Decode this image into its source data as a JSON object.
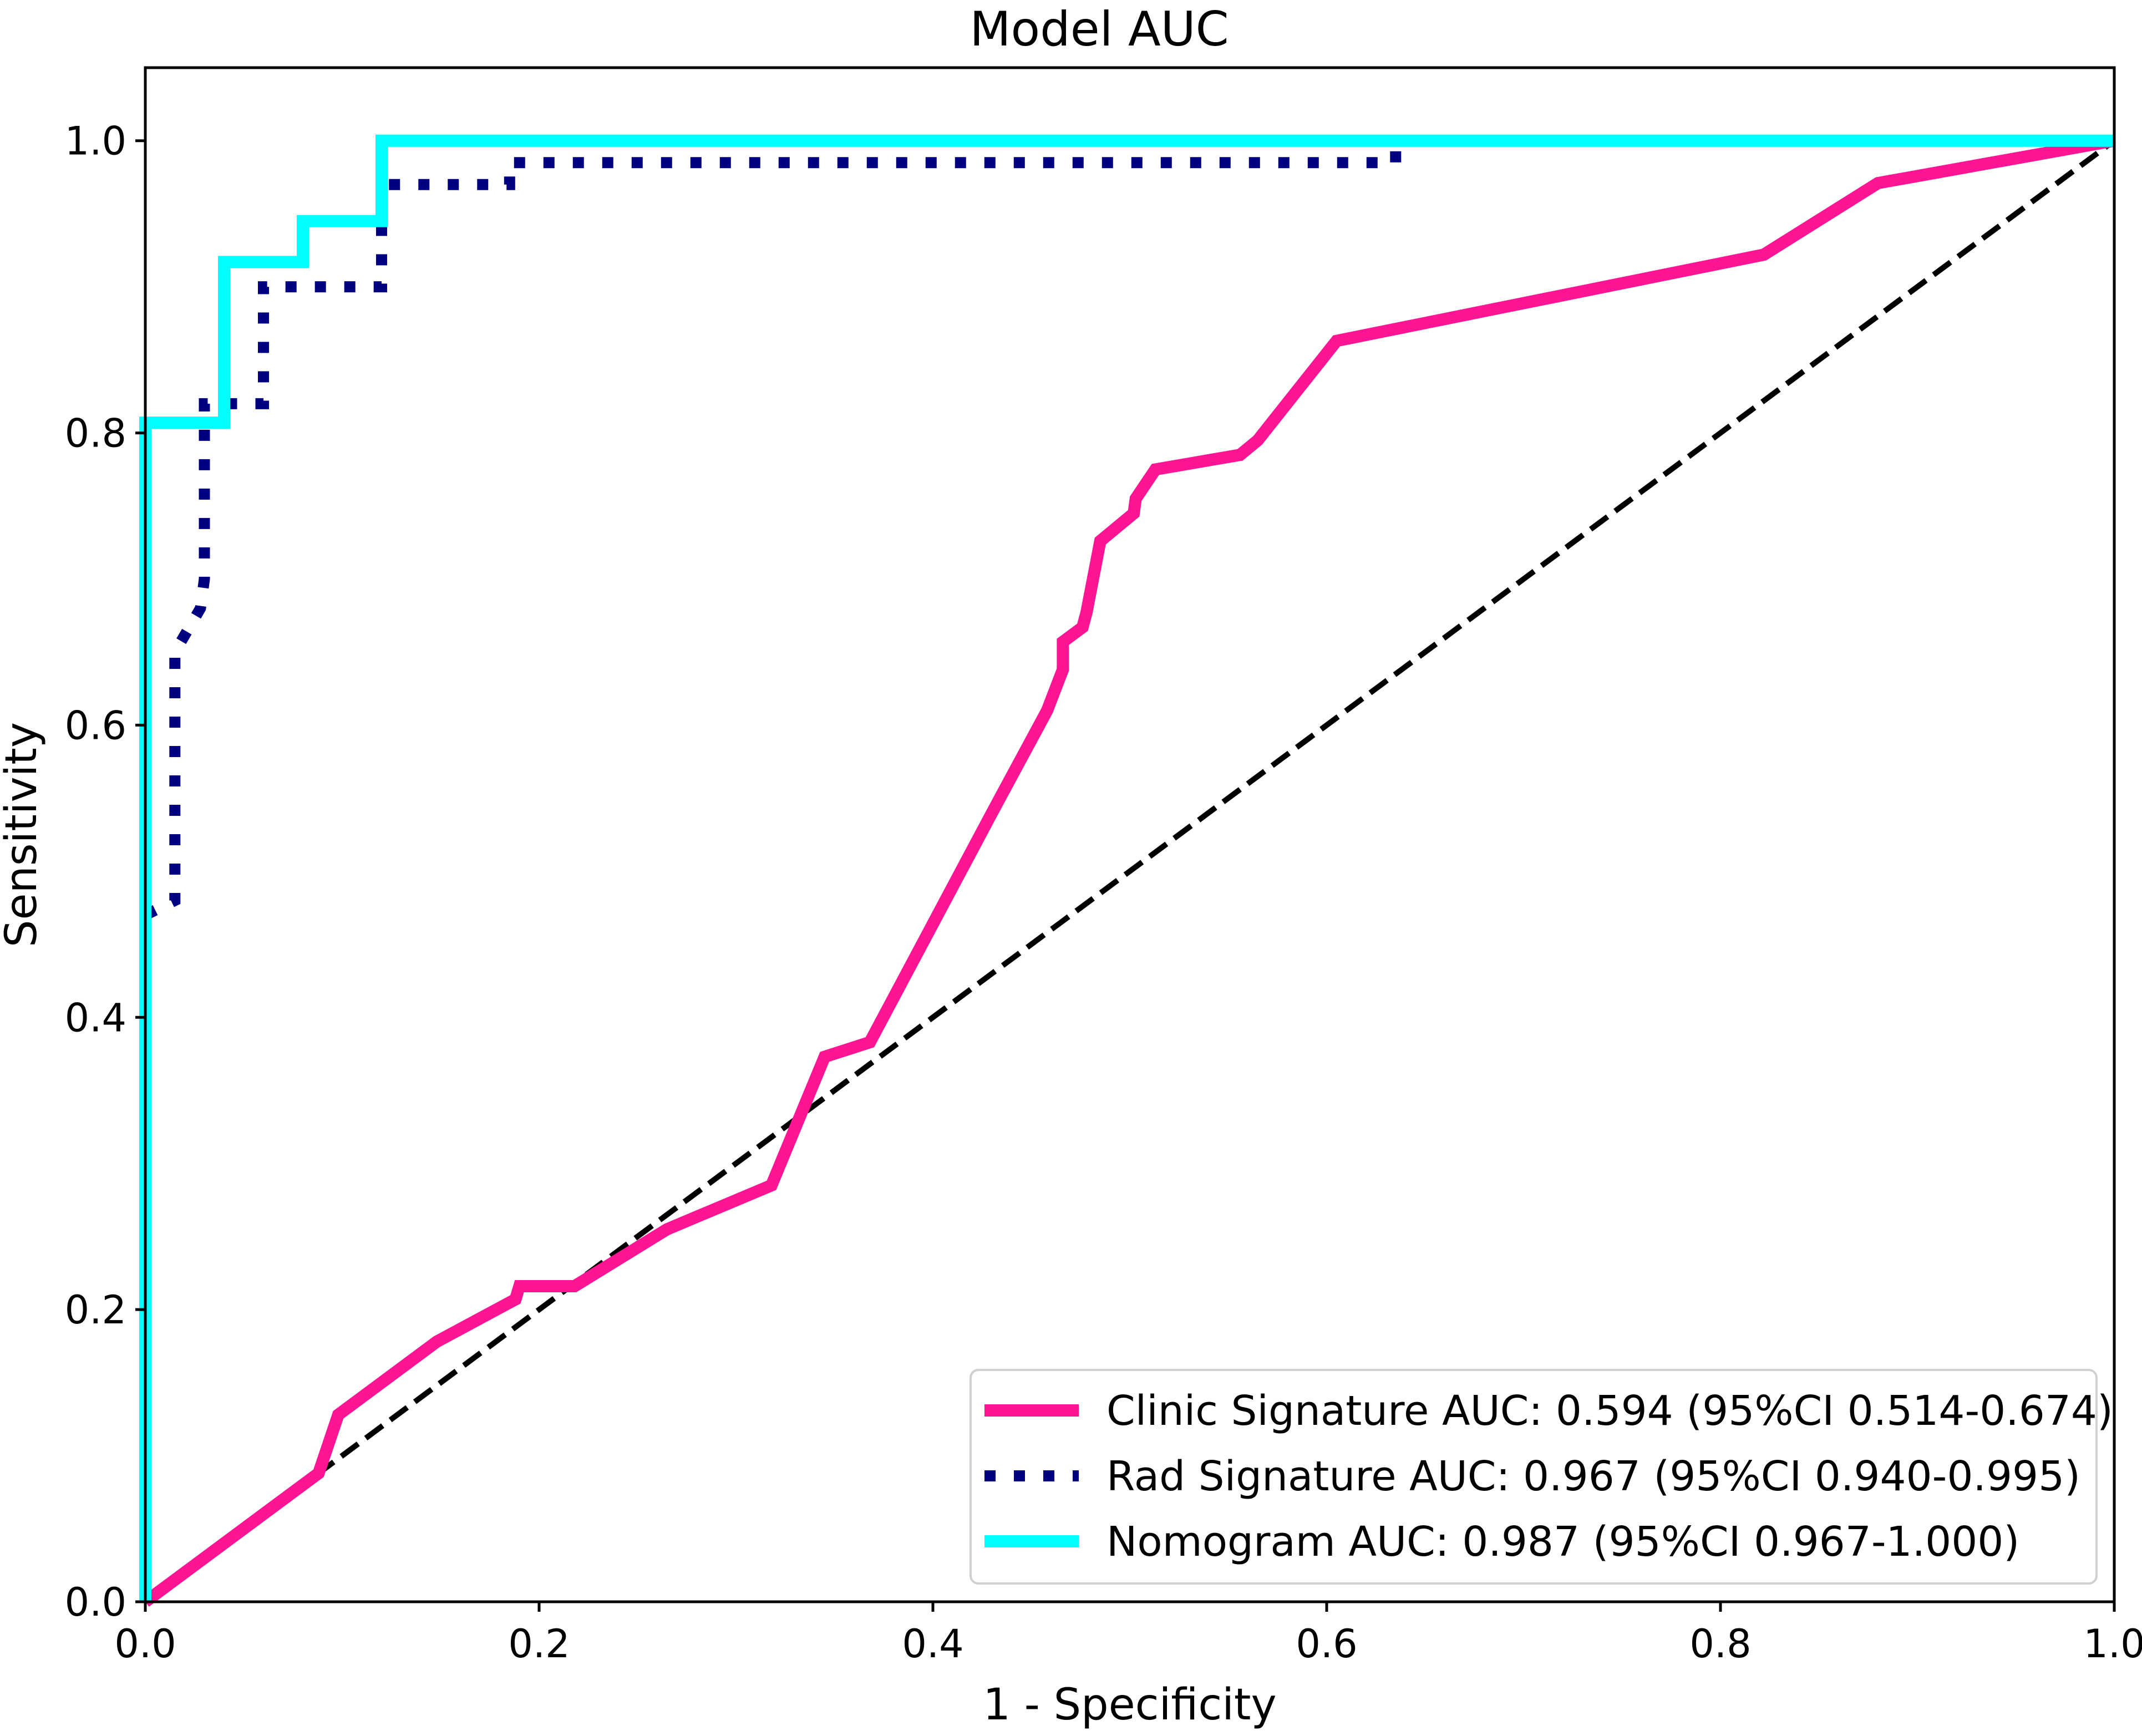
{
  "chart_data": {
    "type": "line",
    "title": "Model AUC",
    "xlabel": "1 - Specificity",
    "ylabel": "Sensitivity",
    "xlim": [
      0.0,
      1.0
    ],
    "ylim": [
      0.0,
      1.05
    ],
    "x_ticks": [
      0.0,
      0.2,
      0.4,
      0.6,
      0.8,
      1.0
    ],
    "x_tick_labels": [
      "0.0",
      "0.2",
      "0.4",
      "0.6",
      "0.8",
      "1.0"
    ],
    "y_ticks": [
      0.0,
      0.2,
      0.4,
      0.6,
      0.8,
      1.0
    ],
    "y_tick_labels": [
      "0.0",
      "0.2",
      "0.4",
      "0.6",
      "0.8",
      "1.0"
    ],
    "grid": false,
    "legend_position": "bottom-right",
    "series": [
      {
        "name": "Clinic Signature AUC: 0.594 (95%CI 0.514-0.674)",
        "color": "#ff1493",
        "style": "solid",
        "points": [
          [
            0.0,
            0.0
          ],
          [
            0.088,
            0.088
          ],
          [
            0.098,
            0.128
          ],
          [
            0.148,
            0.178
          ],
          [
            0.188,
            0.207
          ],
          [
            0.19,
            0.216
          ],
          [
            0.218,
            0.216
          ],
          [
            0.265,
            0.255
          ],
          [
            0.318,
            0.285
          ],
          [
            0.345,
            0.373
          ],
          [
            0.368,
            0.383
          ],
          [
            0.43,
            0.54
          ],
          [
            0.458,
            0.61
          ],
          [
            0.466,
            0.638
          ],
          [
            0.466,
            0.657
          ],
          [
            0.476,
            0.667
          ],
          [
            0.478,
            0.677
          ],
          [
            0.485,
            0.726
          ],
          [
            0.502,
            0.745
          ],
          [
            0.503,
            0.755
          ],
          [
            0.513,
            0.775
          ],
          [
            0.556,
            0.785
          ],
          [
            0.565,
            0.795
          ],
          [
            0.605,
            0.863
          ],
          [
            0.822,
            0.922
          ],
          [
            0.88,
            0.971
          ],
          [
            1.0,
            1.0
          ]
        ]
      },
      {
        "name": "Rad Signature AUC: 0.967 (95%CI 0.940-0.995)",
        "color": "#000080",
        "style": "dotted",
        "points": [
          [
            0.0,
            0.47
          ],
          [
            0.015,
            0.48
          ],
          [
            0.015,
            0.65
          ],
          [
            0.028,
            0.68
          ],
          [
            0.03,
            0.7
          ],
          [
            0.03,
            0.82
          ],
          [
            0.038,
            0.82
          ],
          [
            0.06,
            0.82
          ],
          [
            0.06,
            0.9
          ],
          [
            0.12,
            0.9
          ],
          [
            0.12,
            0.97
          ],
          [
            0.185,
            0.97
          ],
          [
            0.185,
            0.985
          ],
          [
            0.635,
            0.985
          ],
          [
            0.635,
            1.0
          ],
          [
            1.0,
            1.0
          ]
        ]
      },
      {
        "name": "Nomogram AUC: 0.987 (95%CI 0.967-1.000)",
        "color": "#00ffff",
        "style": "solid",
        "points": [
          [
            0.0,
            0.0
          ],
          [
            0.0,
            0.807
          ],
          [
            0.04,
            0.807
          ],
          [
            0.04,
            0.917
          ],
          [
            0.08,
            0.917
          ],
          [
            0.08,
            0.945
          ],
          [
            0.12,
            0.945
          ],
          [
            0.12,
            1.0
          ],
          [
            1.0,
            1.0
          ]
        ]
      },
      {
        "color": "#000000",
        "style": "dashed",
        "points": [
          [
            0.0,
            0.0
          ],
          [
            1.0,
            1.0
          ]
        ]
      }
    ]
  }
}
